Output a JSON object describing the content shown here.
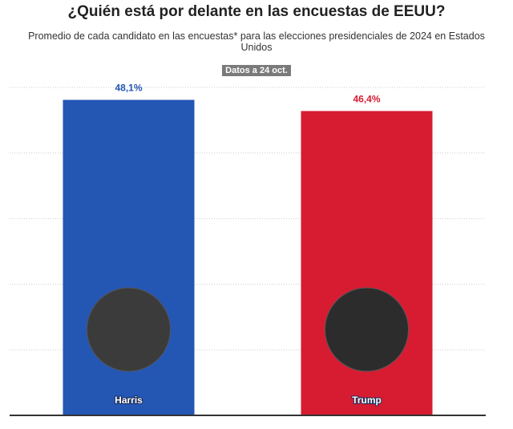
{
  "chart_data": {
    "type": "bar",
    "title": "¿Quién está por delante en las encuestas de EEUU?",
    "subtitle": "Promedio de cada candidato en las encuestas* para las elecciones presidenciales de 2024 en Estados Unidos",
    "note": "Datos a 24 oct.",
    "categories": [
      "Harris",
      "Trump"
    ],
    "values": [
      48.1,
      46.4
    ],
    "value_labels": [
      "48,1%",
      "46,4%"
    ],
    "colors": [
      "#2456b4",
      "#d71c32"
    ],
    "ylim": [
      0,
      50
    ],
    "yticks": [
      0,
      10,
      20,
      30,
      40,
      50
    ],
    "grid": true
  }
}
